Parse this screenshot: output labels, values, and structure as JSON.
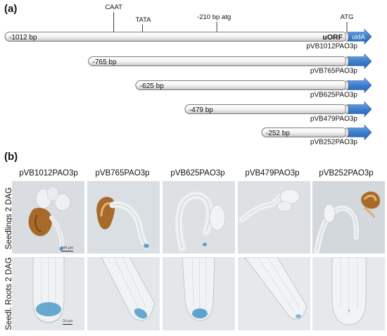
{
  "panel_a_label": "(a)",
  "panel_b_label": "(b)",
  "colors": {
    "bar_fill_light": "#ffffff",
    "bar_fill_dark": "#c8c8c8",
    "arrow_blue": "#3d7fce",
    "gus_blue": "#3a8fc4",
    "seed_brown": "#a86a2a"
  },
  "diagram": {
    "bp_min": -1012,
    "bp_max": 0,
    "elements": [
      {
        "label": "CAAT",
        "bp": -690
      },
      {
        "label": "TATA",
        "bp": -605
      },
      {
        "label": "-210 bp atg",
        "bp": -385
      },
      {
        "label": "ATG",
        "bp": 0
      }
    ],
    "uorf_label": "uORF",
    "reporter_label": "uidA",
    "constructs": [
      {
        "start_label": "-1012 bp",
        "start_bp": -1012,
        "name": "pVB1012PAO3p"
      },
      {
        "start_label": "-765 bp",
        "start_bp": -765,
        "name": "pVB765PAO3p"
      },
      {
        "start_label": "-625 bp",
        "start_bp": -625,
        "name": "pVB625PAO3p"
      },
      {
        "start_label": "-479 bp",
        "start_bp": -479,
        "name": "pVB479PAO3p"
      },
      {
        "start_label": "-252 bp",
        "start_bp": -252,
        "name": "pVB252PAO3p"
      }
    ]
  },
  "images": {
    "columns": [
      "pVB1012PAO3p",
      "pVB765PAO3p",
      "pVB625PAO3p",
      "pVB479PAO3p",
      "pVB252PAO3p"
    ],
    "rows": [
      "Seedlings 2 DAG",
      "Seedl. Roots 2 DAG"
    ],
    "scale_bar_top": "100 µm",
    "scale_bar_bottom": "50 µm"
  }
}
